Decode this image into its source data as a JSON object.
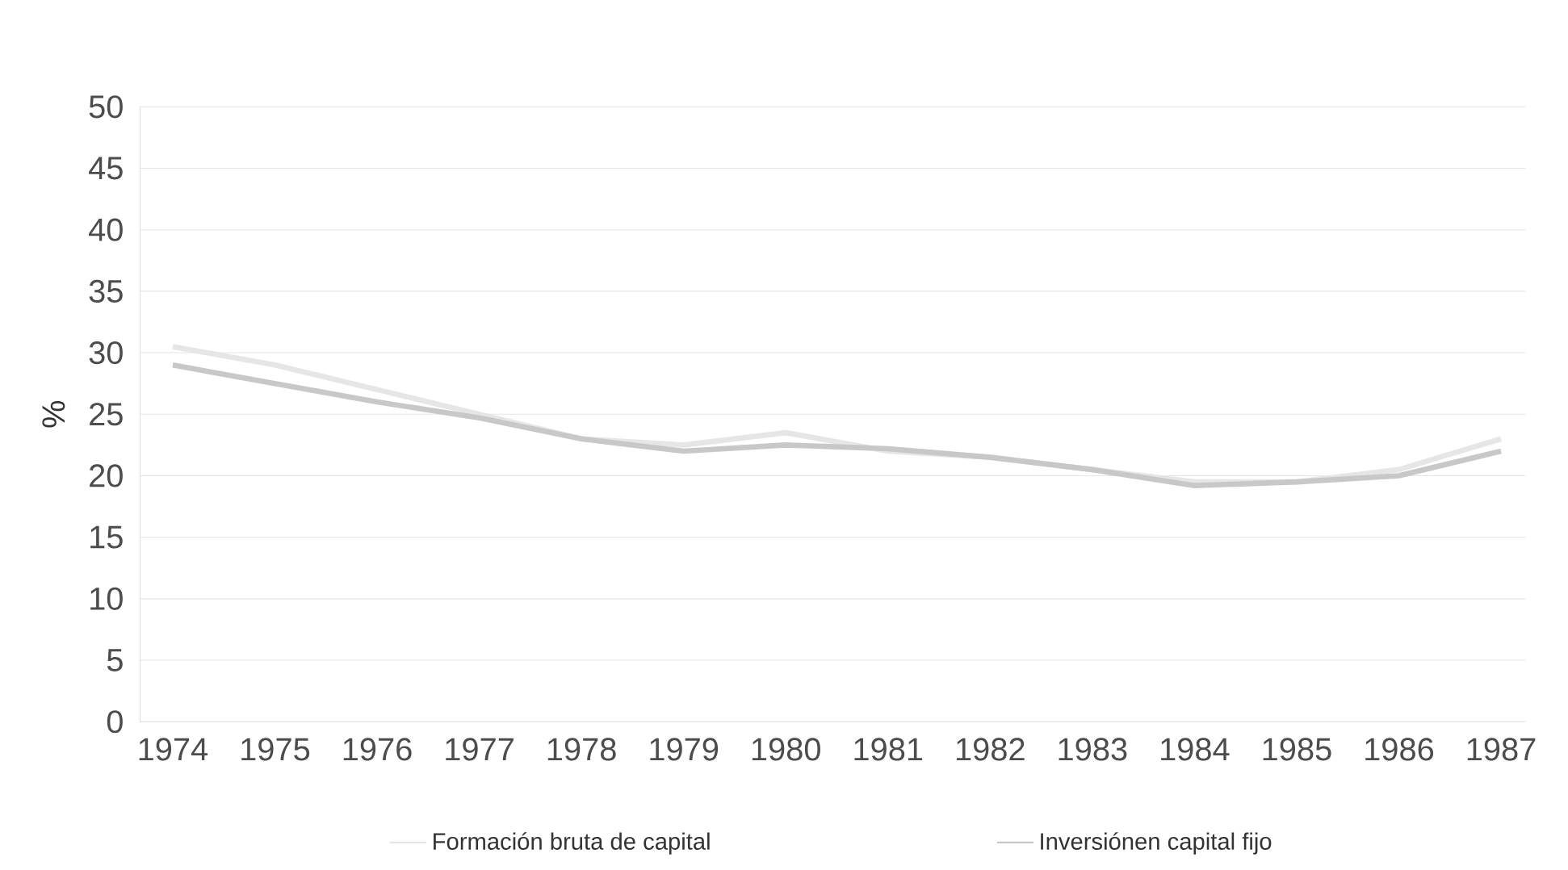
{
  "chart_data": {
    "type": "line",
    "ylabel": "%",
    "categories": [
      "1974",
      "1975",
      "1976",
      "1977",
      "1978",
      "1979",
      "1980",
      "1981",
      "1982",
      "1983",
      "1984",
      "1985",
      "1986",
      "1987"
    ],
    "series": [
      {
        "name": "Formación bruta de capital",
        "color": "#e6e6e6",
        "values": [
          30.5,
          29,
          27,
          25,
          23,
          22.5,
          23.5,
          22,
          21.5,
          20.5,
          19.5,
          19.5,
          20.5,
          23
        ]
      },
      {
        "name": "Inversiónen capital fijo",
        "color": "#c8c8c8",
        "values": [
          29,
          27.5,
          26,
          24.7,
          23,
          22,
          22.5,
          22.2,
          21.5,
          20.5,
          19.2,
          19.5,
          20,
          22
        ]
      }
    ],
    "ylim": [
      0,
      50
    ],
    "yticks": [
      0,
      5,
      10,
      15,
      20,
      25,
      30,
      35,
      40,
      45,
      50
    ],
    "grid": "y",
    "legend": "bottom",
    "line_style": "solid",
    "marker": "none"
  }
}
